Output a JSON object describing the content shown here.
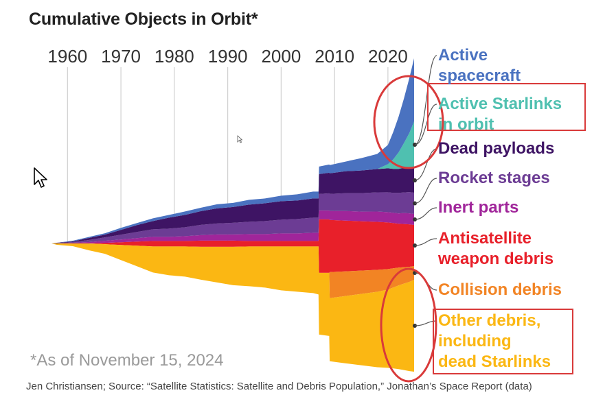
{
  "title": "Cumulative Objects in Orbit*",
  "note": "*As of November 15, 2024",
  "credit": "Jen Christiansen; Source: “Satellite Statistics: Satellite and Debris Population,” Jonathan’s Space Report (data)",
  "chart_data": {
    "type": "area",
    "layout": "streamgraph, stacked layers above and below a baseline",
    "x_ticks": [
      "1960",
      "1970",
      "1980",
      "1990",
      "2000",
      "2010",
      "2020"
    ],
    "x_range": [
      1957,
      2024.9
    ],
    "grid": "vertical lines at each decade",
    "legend": "labels at right end of each layer",
    "y_axis": "none",
    "x": [
      1957,
      1958,
      1961,
      1964,
      1967,
      1970,
      1973,
      1976,
      1979,
      1982,
      1985,
      1988,
      1991,
      1994,
      1997,
      2000,
      2003,
      2006,
      2007.0,
      2007.1,
      2009.0,
      2009.1,
      2012,
      2015,
      2018,
      2020,
      2021,
      2022,
      2023,
      2024,
      2024.9
    ],
    "series": [
      {
        "name": "Active spacecraft",
        "color": "#4a72c0",
        "position": "above",
        "values": [
          0,
          0,
          1,
          1.5,
          2,
          3,
          3,
          4,
          4,
          5,
          5,
          6,
          6,
          7,
          7,
          8,
          9,
          10,
          10,
          11,
          12,
          12,
          14,
          18,
          22,
          28,
          40,
          52,
          65,
          80,
          92
        ]
      },
      {
        "name": "Active Starlinks in orbit",
        "color": "#4fc0b0",
        "position": "above",
        "values": [
          0,
          0,
          0,
          0,
          0,
          0,
          0,
          0,
          0,
          0,
          0,
          0,
          0,
          0,
          0,
          0,
          0,
          0,
          0,
          0,
          0,
          0,
          0,
          0,
          0,
          6,
          14,
          24,
          36,
          50,
          68
        ]
      },
      {
        "name": "Dead payloads",
        "color": "#3e1464",
        "position": "above",
        "values": [
          0,
          0.5,
          1,
          3,
          4,
          7,
          10,
          12,
          16,
          18,
          20,
          22,
          23,
          25,
          26,
          27,
          27,
          28,
          28,
          29,
          30,
          30,
          32,
          33,
          34,
          35,
          35,
          35,
          36,
          36,
          36
        ]
      },
      {
        "name": "Rocket stages",
        "color": "#6c3c94",
        "position": "above",
        "values": [
          0,
          0.5,
          1,
          3,
          5,
          7,
          9,
          11,
          12,
          13,
          15,
          16,
          17,
          18,
          19,
          20,
          21,
          22,
          22,
          24,
          25,
          25,
          26,
          27,
          28,
          29,
          29,
          30,
          30,
          31,
          31
        ]
      },
      {
        "name": "Inert parts",
        "color": "#a0259a",
        "position": "above",
        "values": [
          0,
          0,
          1,
          2,
          3,
          4,
          5,
          6,
          6,
          7,
          8,
          9,
          9,
          10,
          10,
          11,
          11,
          12,
          12,
          13,
          13,
          13,
          14,
          14,
          15,
          15,
          15,
          15,
          16,
          16,
          16
        ]
      },
      {
        "name": "Antisatellite weapon debris",
        "color": "#e8202a",
        "position": "straddle",
        "values": [
          0,
          0,
          0,
          0,
          2,
          4,
          6,
          8,
          8,
          8,
          9,
          9,
          9,
          8,
          8,
          8,
          8,
          8,
          8,
          78,
          78,
          76,
          74,
          72,
          70,
          68,
          66,
          64,
          63,
          62,
          60
        ]
      },
      {
        "name": "Collision debris",
        "color": "#f28424",
        "position": "below",
        "values": [
          0,
          0,
          0,
          0,
          0,
          0,
          0,
          0,
          0,
          0,
          0,
          0,
          0,
          0,
          0,
          0,
          0,
          0,
          0,
          0,
          0,
          38,
          36,
          34,
          32,
          30,
          28,
          26,
          24,
          22,
          20
        ]
      },
      {
        "name": "Other debris, including dead Starlinks",
        "color": "#fbb713",
        "position": "below",
        "values": [
          0,
          2,
          4,
          10,
          14,
          22,
          30,
          38,
          42,
          44,
          48,
          52,
          56,
          58,
          60,
          64,
          66,
          68,
          70,
          90,
          92,
          92,
          98,
          104,
          110,
          114,
          118,
          122,
          126,
          130,
          134
        ]
      }
    ]
  },
  "labels": [
    {
      "lines": [
        "Active",
        "spacecraft"
      ],
      "color": "#4a72c0"
    },
    {
      "lines": [
        "Active Starlinks",
        "in orbit"
      ],
      "color": "#4fc0b0"
    },
    {
      "lines": [
        "Dead payloads"
      ],
      "color": "#3e1464"
    },
    {
      "lines": [
        "Rocket stages"
      ],
      "color": "#6c3c94"
    },
    {
      "lines": [
        "Inert parts"
      ],
      "color": "#a0259a"
    },
    {
      "lines": [
        "Antisatellite",
        "weapon debris"
      ],
      "color": "#e8202a"
    },
    {
      "lines": [
        "Collision debris"
      ],
      "color": "#f28424"
    },
    {
      "lines": [
        "Other debris,",
        "including",
        "dead Starlinks"
      ],
      "color": "#fbb713"
    }
  ],
  "annotations": {
    "highlight_color": "#d93a3a"
  }
}
